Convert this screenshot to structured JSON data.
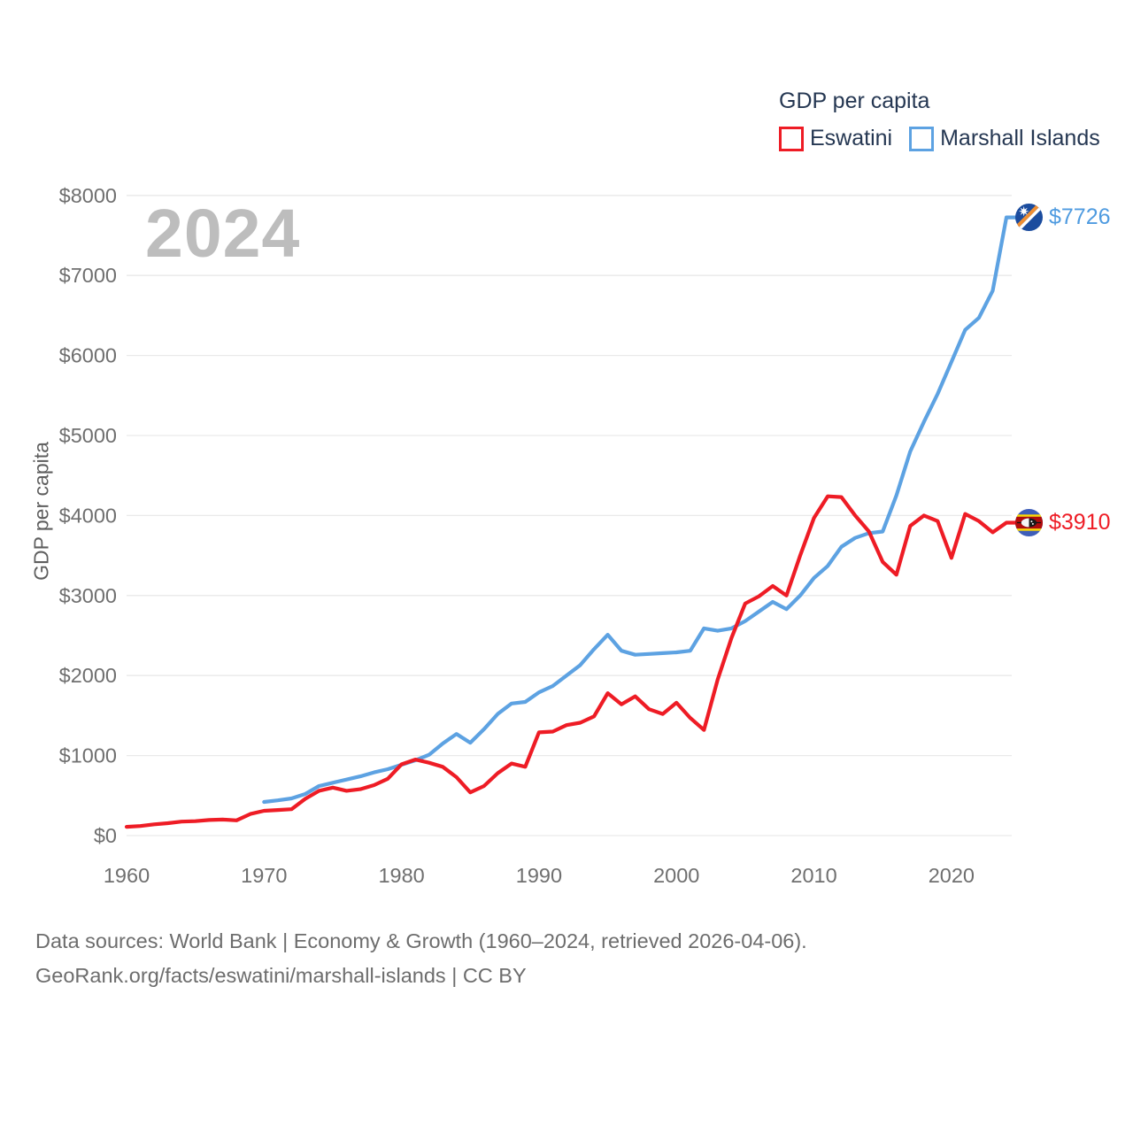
{
  "page": {
    "background": "#ffffff",
    "text_dark": "#253752",
    "tick_color": "#6f6f6f",
    "grid_color": "#e9e9e9",
    "watermark_color": "#bdbdbd"
  },
  "legend": {
    "title": "GDP per capita",
    "items": [
      {
        "label": "Eswatini",
        "color": "#ee1c25"
      },
      {
        "label": "Marshall Islands",
        "color": "#5da2e2"
      }
    ]
  },
  "watermark": {
    "text": "2024"
  },
  "y_axis": {
    "title": "GDP per capita",
    "ticks": [
      "$0",
      "$1000",
      "$2000",
      "$3000",
      "$4000",
      "$5000",
      "$6000",
      "$7000",
      "$8000"
    ]
  },
  "x_axis": {
    "ticks": [
      "1960",
      "1970",
      "1980",
      "1990",
      "2000",
      "2010",
      "2020"
    ]
  },
  "end_labels": [
    {
      "series": "Marshall Islands",
      "text": "$7726",
      "value": 7726,
      "color": "#4f9be0",
      "flag_icon": "marshall-islands-flag-icon"
    },
    {
      "series": "Eswatini",
      "text": "$3910",
      "value": 3910,
      "color": "#ee1c25",
      "flag_icon": "eswatini-flag-icon"
    }
  ],
  "footer": {
    "line1": "Data sources: World Bank | Economy & Growth (1960–2024, retrieved 2026-04-06).",
    "line2": "GeoRank.org/facts/eswatini/marshall-islands | CC BY"
  },
  "chart_data": {
    "type": "line",
    "title": "GDP per capita",
    "ylabel": "GDP per capita",
    "xlim": [
      1960,
      2024
    ],
    "ylim": [
      0,
      8000
    ],
    "grid": true,
    "legend_position": "top-right",
    "x_tick_years": [
      1960,
      1970,
      1980,
      1990,
      2000,
      2010,
      2020
    ],
    "y_tick_values": [
      0,
      1000,
      2000,
      3000,
      4000,
      5000,
      6000,
      7000,
      8000
    ],
    "series": [
      {
        "name": "Marshall Islands",
        "color": "#5da2e2",
        "start_year": 1970,
        "values": [
          420,
          440,
          465,
          520,
          620,
          660,
          700,
          740,
          790,
          830,
          885,
          940,
          1010,
          1150,
          1270,
          1160,
          1330,
          1520,
          1650,
          1670,
          1790,
          1870,
          2000,
          2130,
          2330,
          2510,
          2310,
          2260,
          2270,
          2280,
          2290,
          2310,
          2590,
          2560,
          2590,
          2680,
          2800,
          2920,
          2830,
          3000,
          3220,
          3370,
          3610,
          3720,
          3780,
          3800,
          4250,
          4800,
          5170,
          5520,
          5920,
          6320,
          6470,
          6810,
          7726
        ]
      },
      {
        "name": "Eswatini",
        "color": "#ee1c25",
        "start_year": 1960,
        "values": [
          110,
          120,
          140,
          155,
          175,
          180,
          195,
          200,
          190,
          270,
          310,
          320,
          330,
          460,
          560,
          600,
          560,
          580,
          630,
          710,
          890,
          950,
          910,
          860,
          730,
          540,
          620,
          780,
          900,
          860,
          1290,
          1300,
          1380,
          1410,
          1490,
          1780,
          1640,
          1740,
          1580,
          1520,
          1660,
          1470,
          1320,
          1950,
          2470,
          2900,
          2990,
          3120,
          3000,
          3500,
          3970,
          4240,
          4230,
          4000,
          3800,
          3420,
          3260,
          3870,
          4000,
          3930,
          3470,
          4020,
          3930,
          3790,
          3910
        ]
      }
    ],
    "end_values": {
      "Marshall Islands": 7726,
      "Eswatini": 3910
    }
  }
}
